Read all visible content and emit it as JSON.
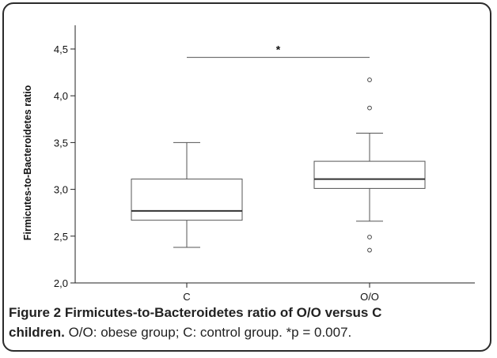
{
  "chart_data": {
    "type": "box",
    "ylabel": "Firmicutes-to-Bacteroidetes ratio",
    "xlabel": "",
    "ylim": [
      2.0,
      4.5
    ],
    "yticks": [
      2.0,
      2.5,
      3.0,
      3.5,
      4.0,
      4.5
    ],
    "ytick_labels": [
      "2,0",
      "2,5",
      "3,0",
      "3,5",
      "4,0",
      "4,5"
    ],
    "categories": [
      "C",
      "O/O"
    ],
    "boxes": [
      {
        "category": "C",
        "whisker_low": 2.38,
        "q1": 2.67,
        "median": 2.77,
        "q3": 3.11,
        "whisker_high": 3.5,
        "outliers": []
      },
      {
        "category": "O/O",
        "whisker_low": 2.66,
        "q1": 3.01,
        "median": 3.11,
        "q3": 3.3,
        "whisker_high": 3.6,
        "outliers": [
          2.35,
          2.49,
          3.87,
          4.17
        ]
      }
    ],
    "significance": {
      "between": [
        "C",
        "O/O"
      ],
      "label": "*"
    },
    "grid": false
  },
  "caption": {
    "figure_label": "Figure 2",
    "title_line1": " Firmicutes-to-Bacteroidetes ratio of O/O versus C",
    "title_line2": "children.",
    "text": " O/O: obese group; C: control group. *p = 0.007."
  }
}
